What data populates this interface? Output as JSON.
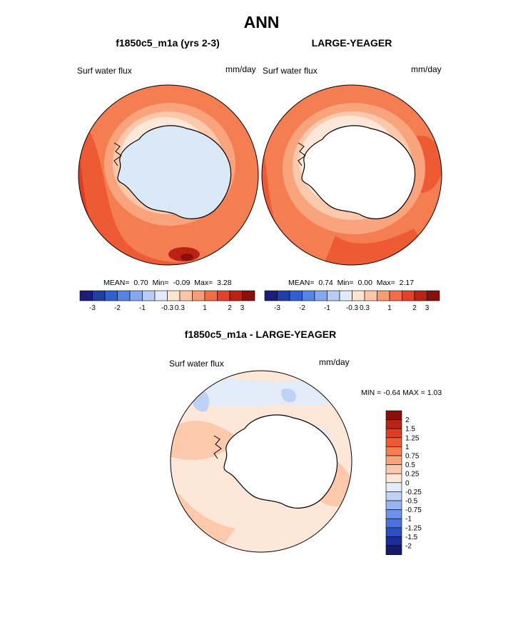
{
  "figure": {
    "title": "ANN",
    "panels": [
      {
        "title": "f1850c5_m1a (yrs 2-3)",
        "left_label": "Surf water flux",
        "right_label": "mm/day",
        "stats": {
          "mean_label": "MEAN=",
          "mean": "0.70",
          "min_label": "Min=",
          "min": "-0.09",
          "max_label": "Max=",
          "max": "3.28"
        }
      },
      {
        "title": "LARGE-YEAGER",
        "left_label": "Surf water flux",
        "right_label": "mm/day",
        "stats": {
          "mean_label": "MEAN=",
          "mean": "0.74",
          "min_label": "Min=",
          "min": "0.00",
          "max_label": "Max=",
          "max": "2.17"
        }
      },
      {
        "title": "f1850c5_m1a - LARGE-YEAGER",
        "left_label": "Surf water flux",
        "right_label": "mm/day",
        "stats_text": "MIN =  -0.64 MAX =   1.03"
      }
    ]
  },
  "chart_data": [
    {
      "type": "heatmap",
      "projection": "south-polar-stereographic",
      "title": "f1850c5_m1a (yrs 2-3)",
      "variable": "Surf water flux",
      "units": "mm/day",
      "mean": 0.7,
      "min": -0.09,
      "max": 3.28,
      "colorbar_levels": [
        -3,
        -2,
        -1,
        -0.3,
        0.3,
        1,
        2,
        3
      ]
    },
    {
      "type": "heatmap",
      "projection": "south-polar-stereographic",
      "title": "LARGE-YEAGER",
      "variable": "Surf water flux",
      "units": "mm/day",
      "mean": 0.74,
      "min": 0.0,
      "max": 2.17,
      "colorbar_levels": [
        -3,
        -2,
        -1,
        -0.3,
        0.3,
        1,
        2,
        3
      ]
    },
    {
      "type": "heatmap",
      "projection": "south-polar-stereographic",
      "title": "f1850c5_m1a - LARGE-YEAGER",
      "variable": "Surf water flux",
      "units": "mm/day",
      "min": -0.64,
      "max": 1.03,
      "colorbar_levels": [
        "2",
        "1.5",
        "1.25",
        "1",
        "0.75",
        "0.5",
        "0.25",
        "0",
        "-0.25",
        "-0.5",
        "-0.75",
        "-1",
        "-1.25",
        "-1.5",
        "-2"
      ]
    }
  ],
  "colors": {
    "h_bar": [
      "#1c1c7a",
      "#1f3fa6",
      "#2f5fd0",
      "#5584e6",
      "#86a8f0",
      "#b8ccf5",
      "#e0ebf7",
      "#fde3d2",
      "#fbc5a8",
      "#f79c74",
      "#f26d45",
      "#e1432a",
      "#bb2216",
      "#8a0f0a"
    ],
    "v_bar": [
      "#8a0f0a",
      "#bb2216",
      "#de3d25",
      "#ee5a34",
      "#f47d52",
      "#f9a47c",
      "#fcc9ad",
      "#fde7d9",
      "#e2ecf8",
      "#bfd1f4",
      "#98b4ef",
      "#6f93ea",
      "#4a72de",
      "#2c4fc7",
      "#1d2f96",
      "#151a6e"
    ],
    "ice_blue": "#dbe8f8",
    "land_white": "#ffffff"
  }
}
